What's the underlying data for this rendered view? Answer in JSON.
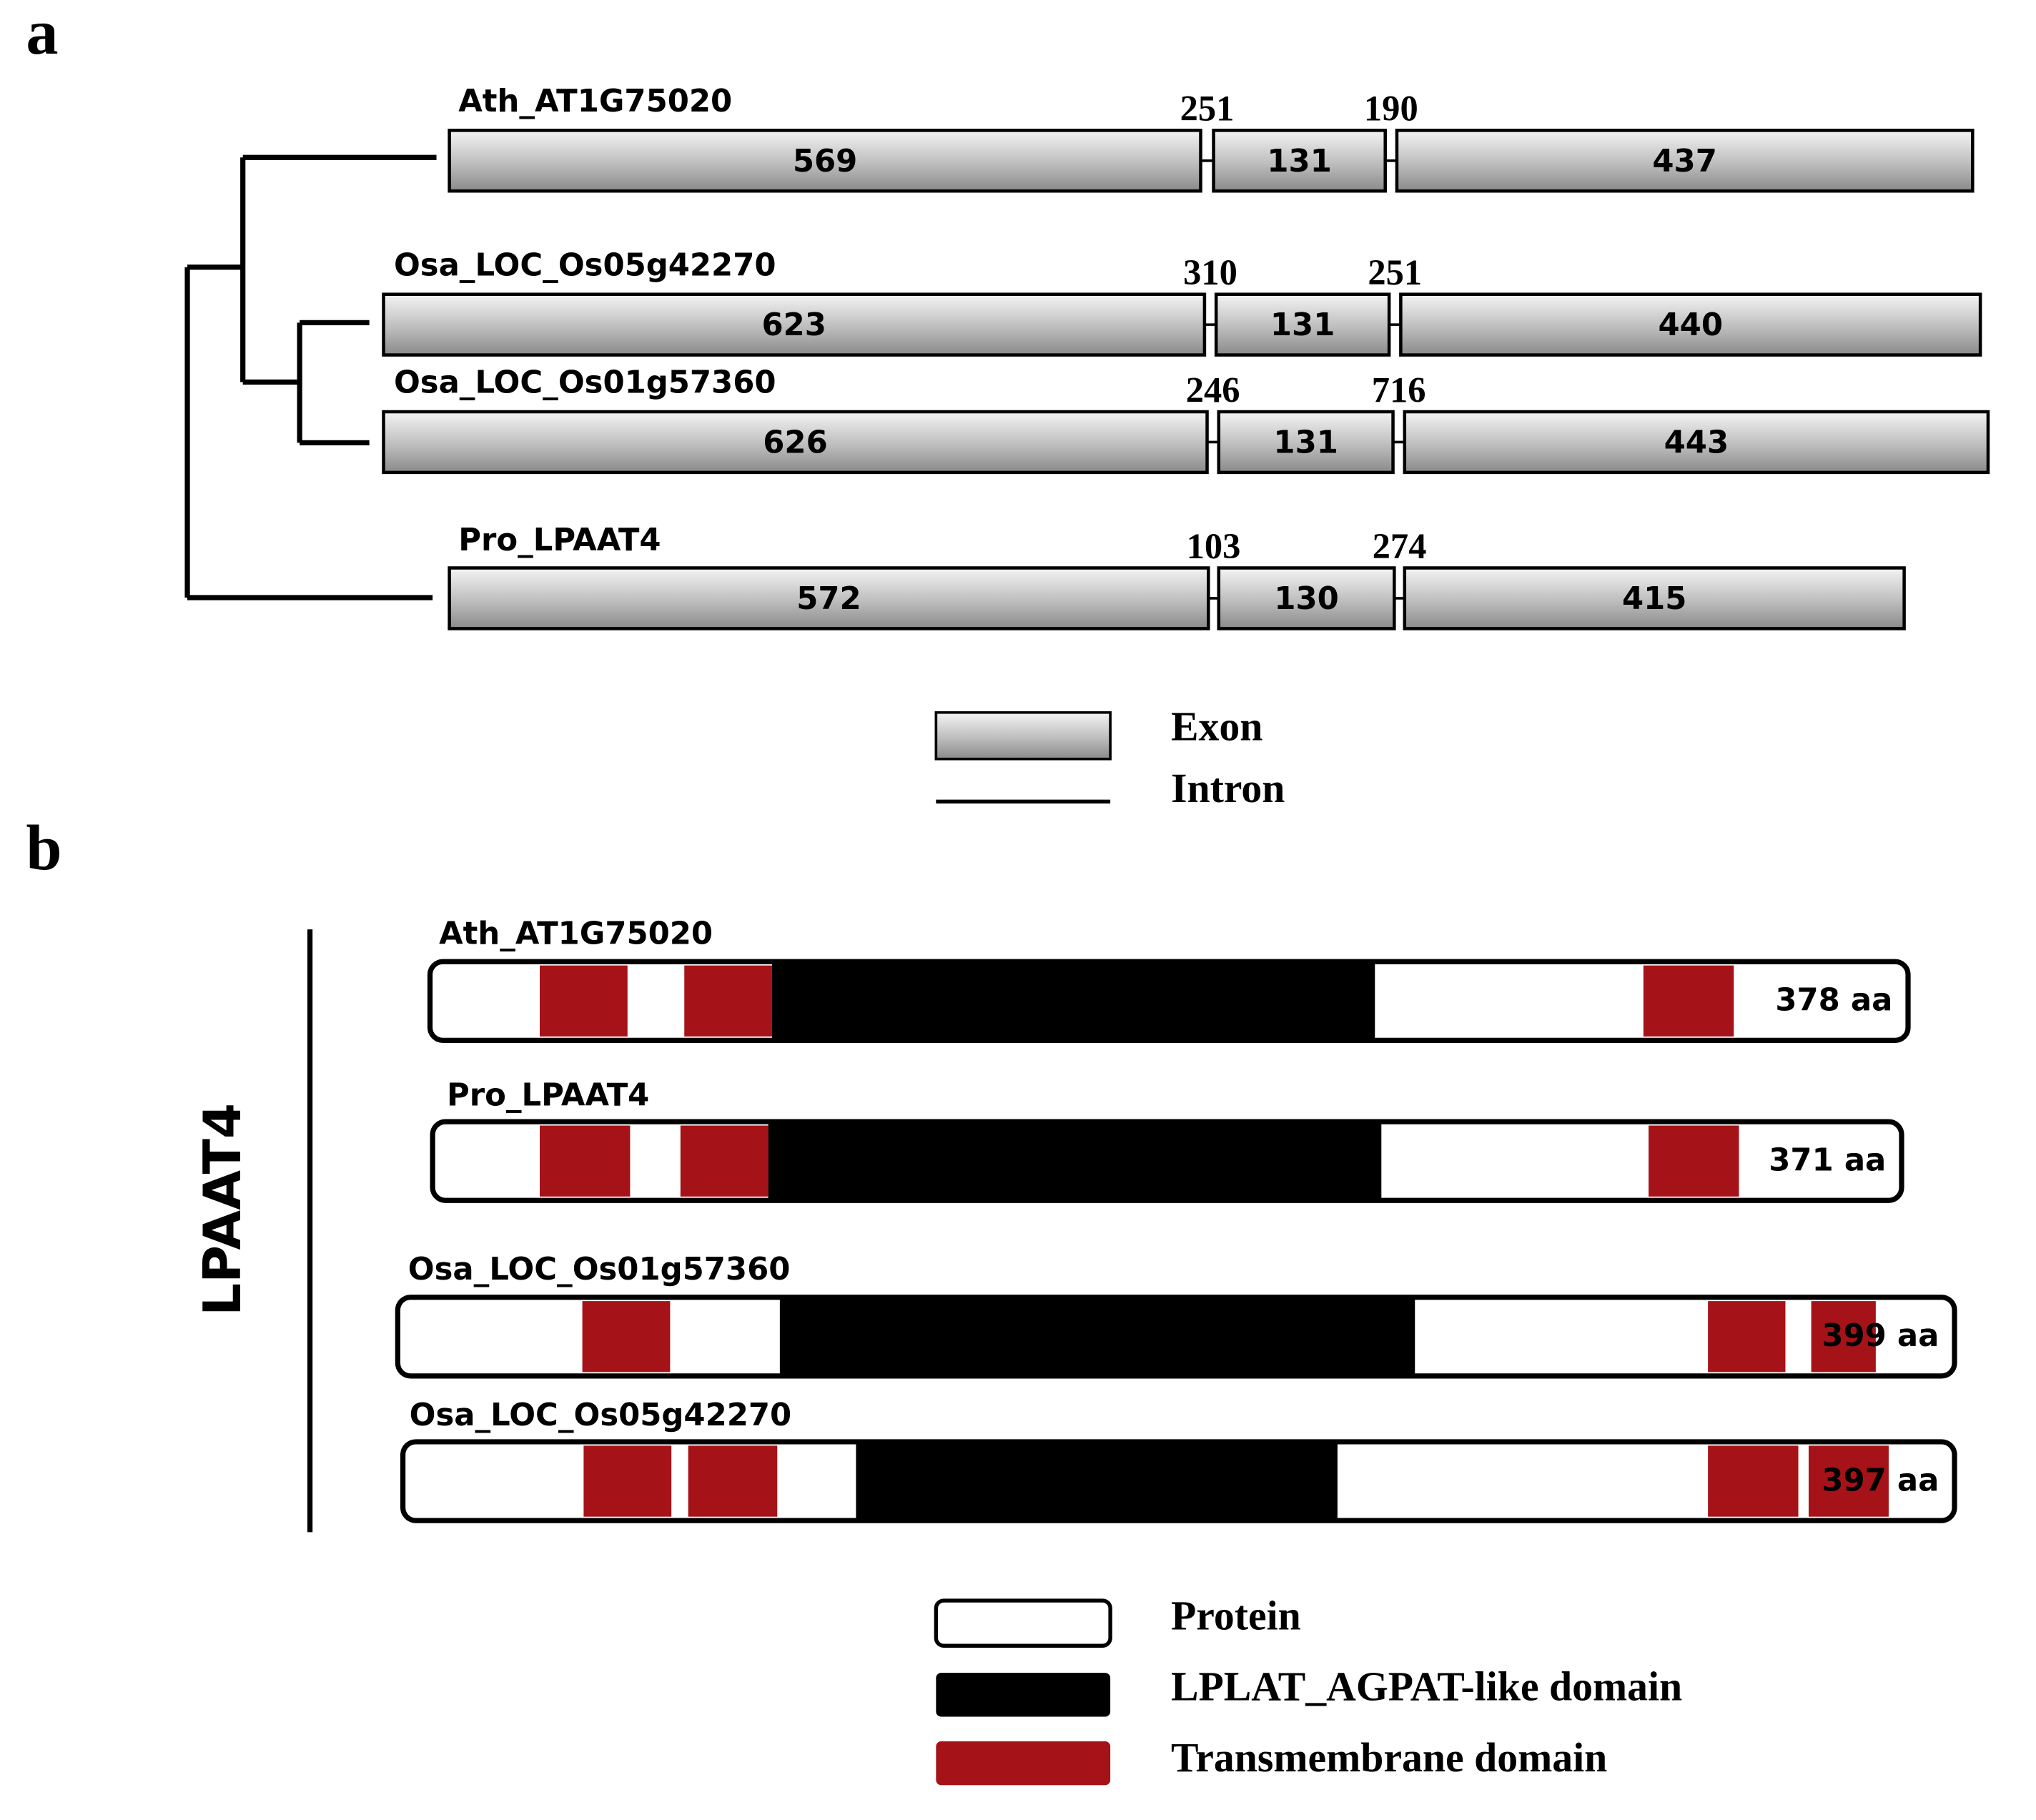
{
  "panel_a": {
    "label": "a",
    "genes": [
      {
        "name": "Ath_AT1G75020",
        "exons": [
          "569",
          "131",
          "437"
        ],
        "introns": [
          "251",
          "190"
        ]
      },
      {
        "name": "Osa_LOC_Os05g42270",
        "exons": [
          "623",
          "131",
          "440"
        ],
        "introns": [
          "310",
          "251"
        ]
      },
      {
        "name": "Osa_LOC_Os01g57360",
        "exons": [
          "626",
          "131",
          "443"
        ],
        "introns": [
          "246",
          "716"
        ]
      },
      {
        "name": "Pro_LPAAT4",
        "exons": [
          "572",
          "130",
          "415"
        ],
        "introns": [
          "103",
          "274"
        ]
      }
    ],
    "legend": [
      "Exon",
      "Intron"
    ]
  },
  "panel_b": {
    "label": "b",
    "group": "LPAAT4",
    "proteins": [
      {
        "name": "Ath_AT1G75020",
        "length": "378 aa"
      },
      {
        "name": "Pro_LPAAT4",
        "length": "371 aa"
      },
      {
        "name": "Osa_LOC_Os01g57360",
        "length": "399 aa"
      },
      {
        "name": "Osa_LOC_Os05g42270",
        "length": "397 aa"
      }
    ],
    "legend": [
      "Protein",
      "LPLAT_AGPAT-like domain",
      "Transmembrane domain"
    ]
  }
}
